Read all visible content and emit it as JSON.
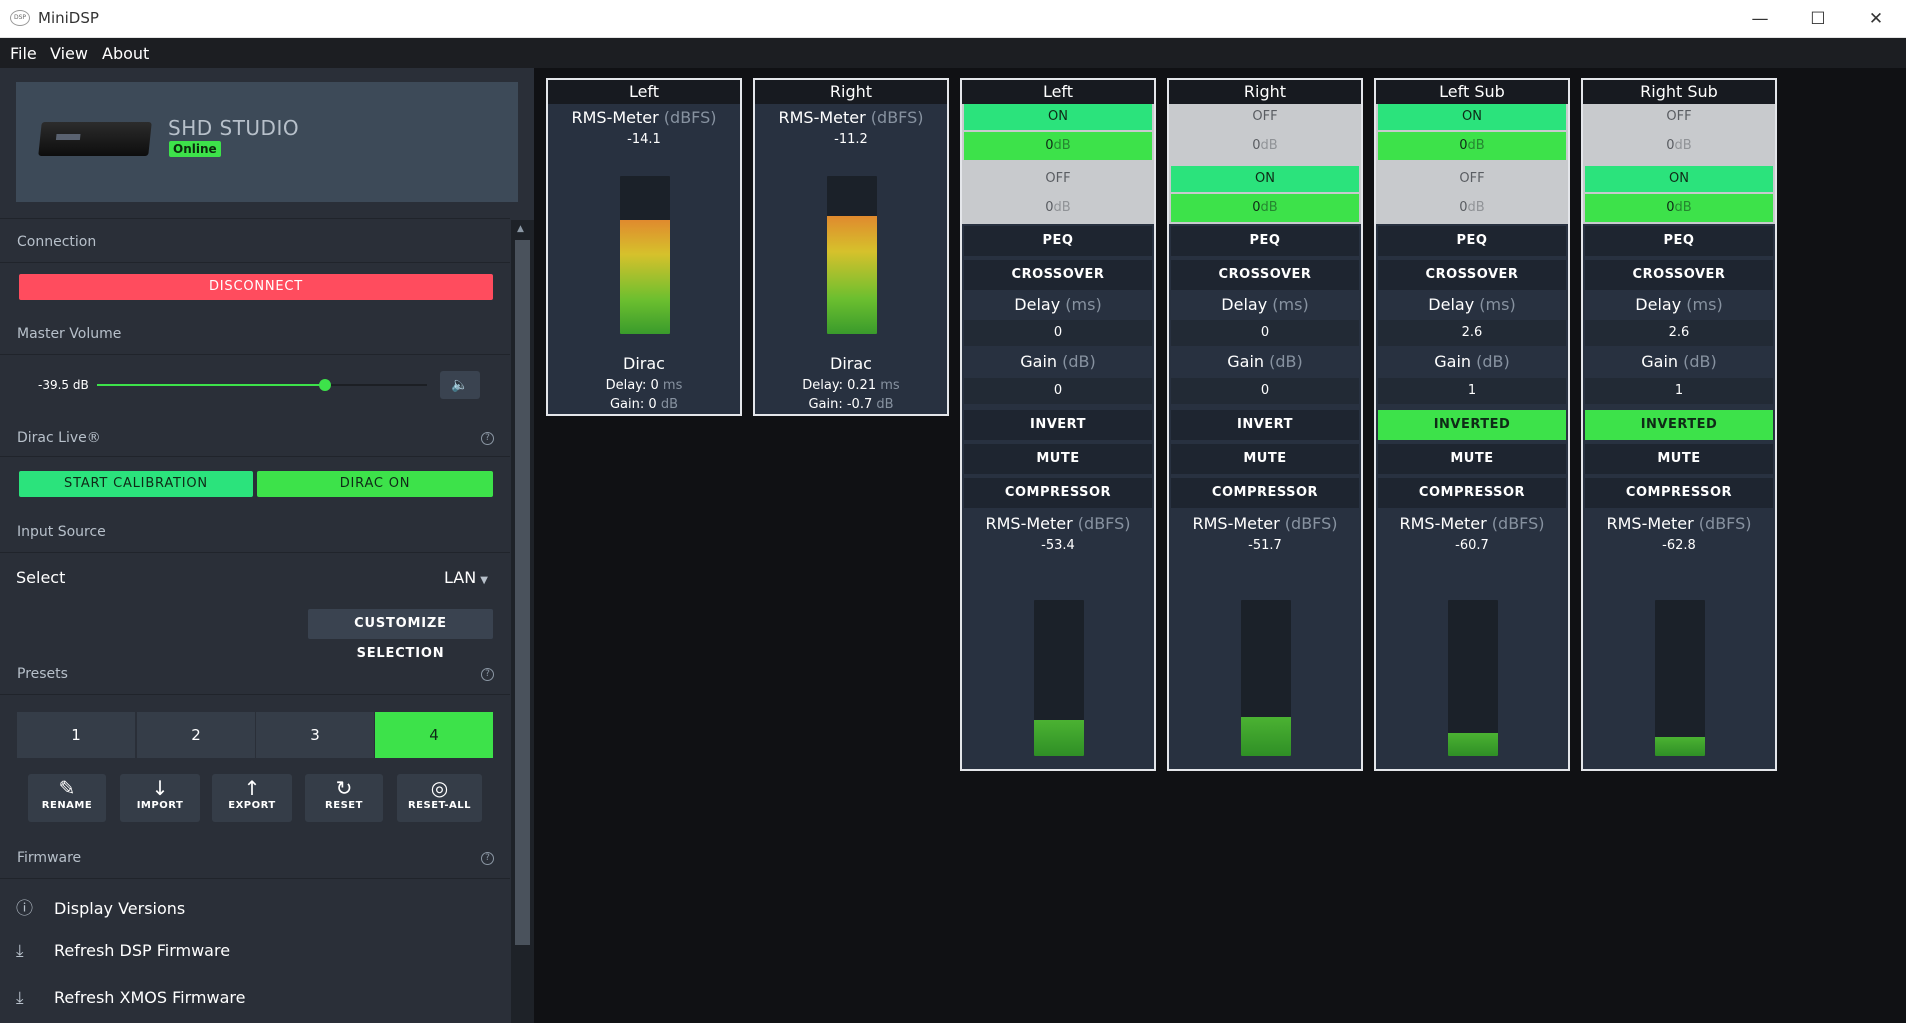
{
  "window": {
    "title": "MiniDSP",
    "logo_text": "DSP",
    "minimize": "—",
    "maximize": "☐",
    "close": "✕"
  },
  "menu": {
    "file": "File",
    "view": "View",
    "about": "About"
  },
  "device": {
    "name": "SHD STUDIO",
    "status": "Online"
  },
  "connection": {
    "label": "Connection",
    "disconnect": "DISCONNECT"
  },
  "volume": {
    "label": "Master Volume",
    "value": "-39.5 dB",
    "level_fraction": 0.69,
    "speaker_icon": "🔈"
  },
  "dirac": {
    "label": "Dirac Live®",
    "start": "START CALIBRATION",
    "toggle": "DIRAC ON"
  },
  "input": {
    "label": "Input Source",
    "select_label": "Select",
    "value": "LAN",
    "customize": "CUSTOMIZE SELECTION"
  },
  "presets": {
    "label": "Presets",
    "items": [
      "1",
      "2",
      "3",
      "4"
    ],
    "active": "4",
    "actions": [
      {
        "label": "RENAME",
        "icon": "edit-icon"
      },
      {
        "label": "IMPORT",
        "icon": "arrow-down-icon"
      },
      {
        "label": "EXPORT",
        "icon": "arrow-up-icon"
      },
      {
        "label": "RESET",
        "icon": "refresh-icon"
      },
      {
        "label": "RESET-ALL",
        "icon": "reset-all-icon"
      }
    ]
  },
  "firmware": {
    "label": "Firmware",
    "items": [
      "Display Versions",
      "Refresh DSP Firmware",
      "Refresh XMOS Firmware"
    ]
  },
  "help_glyph": "?",
  "colors": {
    "accent_green": "#3de24a",
    "on_green": "#2be37c",
    "danger": "#ff4c5e",
    "panel": "#283140"
  },
  "inputs": [
    {
      "title": "Left",
      "meter_label": "RMS-Meter",
      "meter_unit": "(dBFS)",
      "rms": "-14.1",
      "level_fraction": 0.72,
      "section": "Dirac",
      "delay_label": "Delay:",
      "delay": "0",
      "delay_unit": "ms",
      "gain_label": "Gain:",
      "gain": "0",
      "gain_unit": "dB"
    },
    {
      "title": "Right",
      "meter_label": "RMS-Meter",
      "meter_unit": "(dBFS)",
      "rms": "-11.2",
      "level_fraction": 0.75,
      "section": "Dirac",
      "delay_label": "Delay:",
      "delay": "0.21",
      "delay_unit": "ms",
      "gain_label": "Gain:",
      "gain": "-0.7",
      "gain_unit": "dB"
    }
  ],
  "outputs": [
    {
      "title": "Left",
      "in1_state": "ON",
      "in1_gain": "0",
      "in2_state": "OFF",
      "in2_gain": "0",
      "peq": "PEQ",
      "crossover": "CROSSOVER",
      "delay_label": "Delay",
      "delay_unit": "(ms)",
      "delay": "0",
      "gain_label": "Gain",
      "gain_unit": "(dB)",
      "gain": "0",
      "invert": "INVERT",
      "mute": "MUTE",
      "compressor": "COMPRESSOR",
      "meter_label": "RMS-Meter",
      "meter_unit": "(dBFS)",
      "rms": "-53.4",
      "level_fraction": 0.23,
      "gain_db_unit": "dB"
    },
    {
      "title": "Right",
      "in1_state": "OFF",
      "in1_gain": "0",
      "in2_state": "ON",
      "in2_gain": "0",
      "peq": "PEQ",
      "crossover": "CROSSOVER",
      "delay_label": "Delay",
      "delay_unit": "(ms)",
      "delay": "0",
      "gain_label": "Gain",
      "gain_unit": "(dB)",
      "gain": "0",
      "invert": "INVERT",
      "mute": "MUTE",
      "compressor": "COMPRESSOR",
      "meter_label": "RMS-Meter",
      "meter_unit": "(dBFS)",
      "rms": "-51.7",
      "level_fraction": 0.25,
      "gain_db_unit": "dB"
    },
    {
      "title": "Left Sub",
      "in1_state": "ON",
      "in1_gain": "0",
      "in2_state": "OFF",
      "in2_gain": "0",
      "peq": "PEQ",
      "crossover": "CROSSOVER",
      "delay_label": "Delay",
      "delay_unit": "(ms)",
      "delay": "2.6",
      "gain_label": "Gain",
      "gain_unit": "(dB)",
      "gain": "1",
      "invert": "INVERTED",
      "mute": "MUTE",
      "compressor": "COMPRESSOR",
      "meter_label": "RMS-Meter",
      "meter_unit": "(dBFS)",
      "rms": "-60.7",
      "level_fraction": 0.15,
      "gain_db_unit": "dB"
    },
    {
      "title": "Right Sub",
      "in1_state": "OFF",
      "in1_gain": "0",
      "in2_state": "ON",
      "in2_gain": "0",
      "peq": "PEQ",
      "crossover": "CROSSOVER",
      "delay_label": "Delay",
      "delay_unit": "(ms)",
      "delay": "2.6",
      "gain_label": "Gain",
      "gain_unit": "(dB)",
      "gain": "1",
      "invert": "INVERTED",
      "mute": "MUTE",
      "compressor": "COMPRESSOR",
      "meter_label": "RMS-Meter",
      "meter_unit": "(dBFS)",
      "rms": "-62.8",
      "level_fraction": 0.12,
      "gain_db_unit": "dB"
    }
  ]
}
